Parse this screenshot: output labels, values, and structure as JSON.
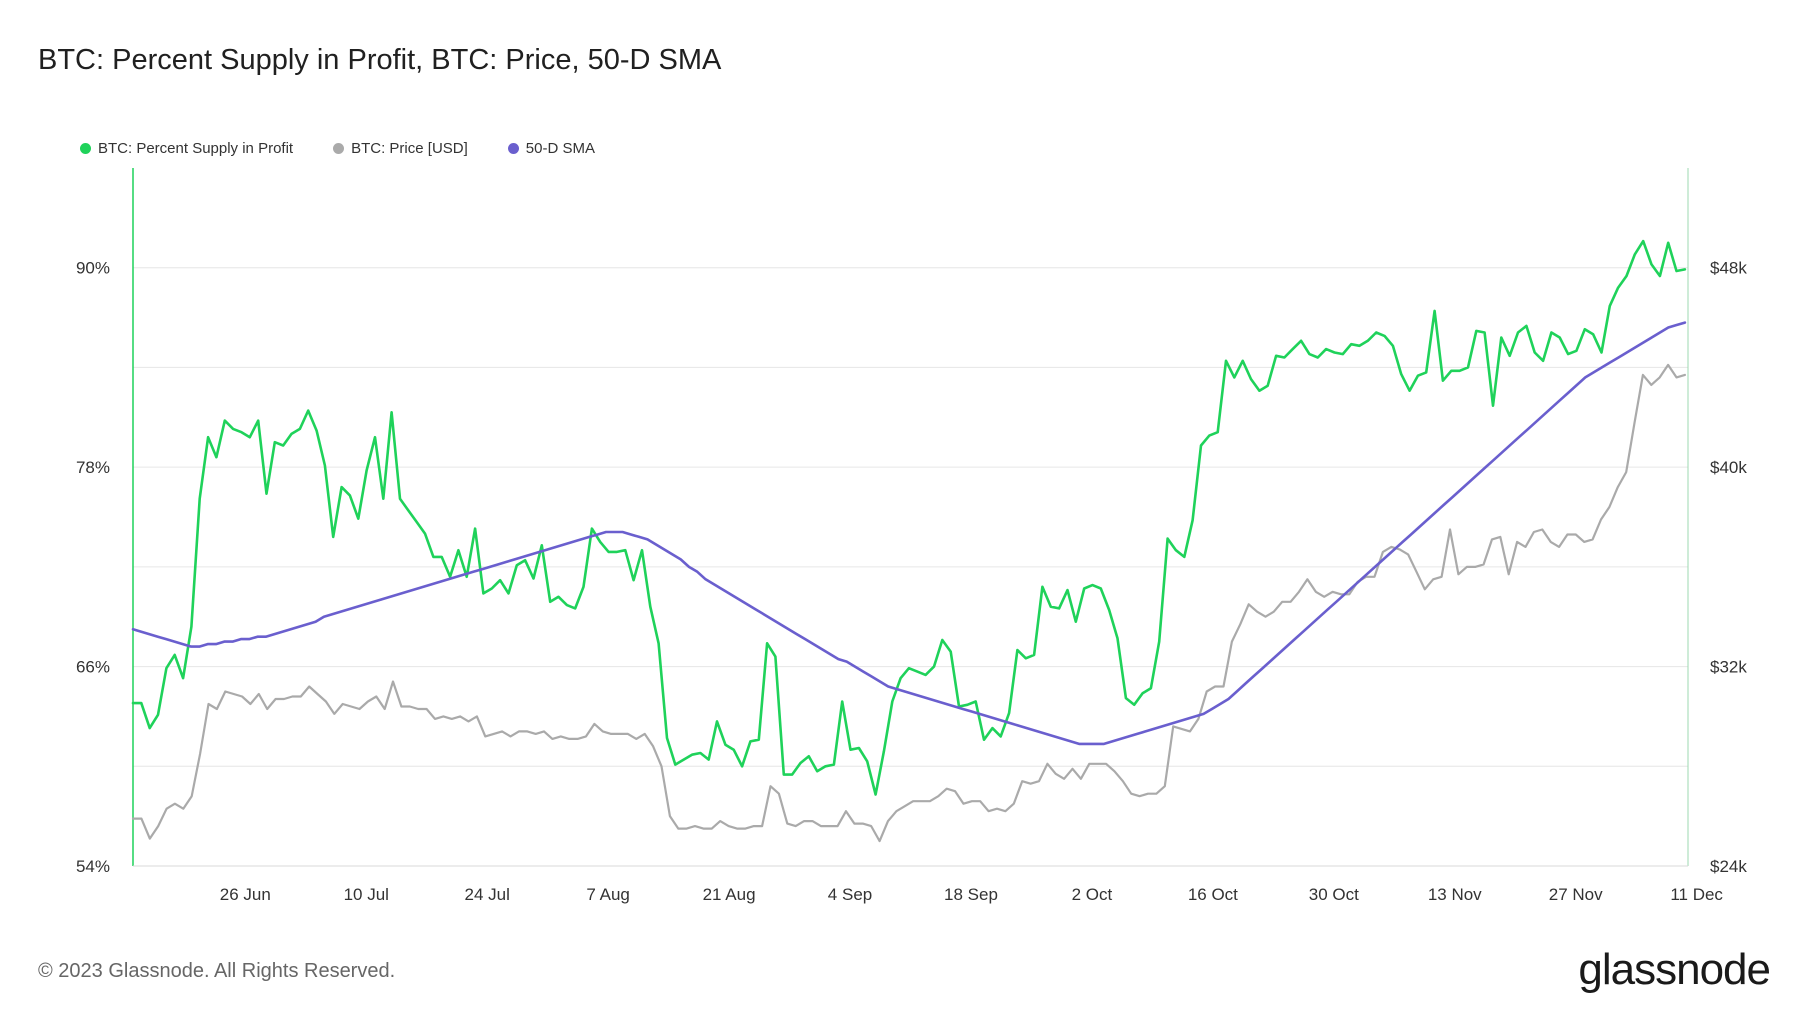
{
  "title": "BTC: Percent Supply in Profit, BTC: Price, 50-D SMA",
  "footer": "© 2023 Glassnode. All Rights Reserved.",
  "logo": "glassnode",
  "chart_data": {
    "type": "line",
    "legend_placement": "top-left",
    "grid": true,
    "x_ticks": [
      "26 Jun",
      "10 Jul",
      "24 Jul",
      "7 Aug",
      "21 Aug",
      "4 Sep",
      "18 Sep",
      "2 Oct",
      "16 Oct",
      "30 Oct",
      "13 Nov",
      "27 Nov",
      "11 Dec"
    ],
    "x_start": "2023-06-13",
    "x_end": "2023-12-10",
    "y_left": {
      "ticks": [
        "54%",
        "66%",
        "78%",
        "90%"
      ],
      "range": [
        54,
        96
      ]
    },
    "y_right": {
      "ticks": [
        "$24k",
        "$32k",
        "$40k",
        "$48k"
      ],
      "range": [
        24000,
        52000
      ]
    },
    "colors": {
      "supply": "#1fd25a",
      "price": "#aaaaaa",
      "sma": "#6a5fce"
    },
    "series": [
      {
        "name": "BTC: Percent Supply in Profit",
        "axis": "left",
        "key": "supply",
        "values": [
          63.8,
          63.8,
          62.3,
          63.1,
          65.9,
          66.7,
          65.3,
          68.4,
          76.1,
          79.8,
          78.6,
          80.8,
          80.3,
          80.1,
          79.8,
          80.8,
          76.4,
          79.5,
          79.3,
          80.0,
          80.3,
          81.4,
          80.2,
          78.1,
          73.8,
          76.8,
          76.3,
          74.9,
          77.8,
          79.8,
          76.1,
          81.3,
          76.1,
          75.4,
          74.7,
          74.0,
          72.6,
          72.6,
          71.4,
          73.0,
          71.4,
          74.3,
          70.4,
          70.7,
          71.2,
          70.4,
          72.1,
          72.4,
          71.3,
          73.3,
          69.9,
          70.2,
          69.7,
          69.5,
          70.8,
          74.3,
          73.5,
          72.9,
          72.9,
          73.0,
          71.2,
          73.0,
          69.6,
          67.4,
          61.7,
          60.1,
          60.4,
          60.7,
          60.8,
          60.4,
          62.7,
          61.3,
          61.0,
          60.0,
          61.5,
          61.6,
          67.4,
          66.6,
          59.5,
          59.5,
          60.2,
          60.6,
          59.7,
          60.0,
          60.1,
          63.9,
          61.0,
          61.1,
          60.3,
          58.3,
          60.9,
          63.9,
          65.3,
          65.9,
          65.7,
          65.5,
          66.0,
          67.6,
          66.9,
          63.6,
          63.7,
          63.9,
          61.6,
          62.3,
          61.8,
          63.2,
          67.0,
          66.5,
          66.7,
          70.8,
          69.6,
          69.5,
          70.6,
          68.7,
          70.7,
          70.9,
          70.7,
          69.4,
          67.7,
          64.1,
          63.7,
          64.4,
          64.7,
          67.5,
          73.7,
          73.0,
          72.6,
          74.8,
          79.3,
          79.9,
          80.1,
          84.4,
          83.4,
          84.4,
          83.3,
          82.6,
          82.9,
          84.7,
          84.6,
          85.1,
          85.6,
          84.8,
          84.6,
          85.1,
          84.9,
          84.8,
          85.4,
          85.3,
          85.6,
          86.1,
          85.9,
          85.3,
          83.6,
          82.6,
          83.5,
          83.7,
          87.4,
          83.2,
          83.8,
          83.8,
          84.0,
          86.2,
          86.1,
          81.7,
          85.8,
          84.7,
          86.1,
          86.5,
          84.9,
          84.4,
          86.1,
          85.8,
          84.8,
          85.0,
          86.3,
          86.0,
          84.9,
          87.7,
          88.8,
          89.5,
          90.8,
          91.6,
          90.2,
          89.5,
          91.5,
          89.8,
          89.9
        ]
      },
      {
        "name": "BTC: Price [USD]",
        "axis": "right",
        "key": "price",
        "values": [
          25900,
          25900,
          25100,
          25600,
          26300,
          26500,
          26300,
          26800,
          28500,
          30500,
          30300,
          31000,
          30900,
          30800,
          30500,
          30900,
          30300,
          30700,
          30700,
          30800,
          30800,
          31200,
          30900,
          30600,
          30100,
          30500,
          30400,
          30300,
          30600,
          30800,
          30300,
          31400,
          30400,
          30400,
          30300,
          30300,
          29900,
          30000,
          29900,
          30000,
          29800,
          30000,
          29200,
          29300,
          29400,
          29200,
          29400,
          29400,
          29300,
          29400,
          29100,
          29200,
          29100,
          29100,
          29200,
          29700,
          29400,
          29300,
          29300,
          29300,
          29100,
          29300,
          28800,
          28000,
          26000,
          25500,
          25500,
          25600,
          25500,
          25500,
          25800,
          25600,
          25500,
          25500,
          25600,
          25600,
          27200,
          26900,
          25700,
          25600,
          25800,
          25800,
          25600,
          25600,
          25600,
          26200,
          25700,
          25700,
          25600,
          25000,
          25800,
          26200,
          26400,
          26600,
          26600,
          26600,
          26800,
          27100,
          27000,
          26500,
          26600,
          26600,
          26200,
          26300,
          26200,
          26500,
          27400,
          27300,
          27400,
          28100,
          27700,
          27500,
          27900,
          27500,
          28100,
          28100,
          28100,
          27800,
          27400,
          26900,
          26800,
          26900,
          26900,
          27200,
          29600,
          29500,
          29400,
          29900,
          31000,
          31200,
          31200,
          33000,
          33700,
          34500,
          34200,
          34000,
          34200,
          34600,
          34600,
          35000,
          35500,
          35000,
          34800,
          35000,
          34900,
          34900,
          35400,
          35600,
          35600,
          36600,
          36800,
          36700,
          36500,
          35800,
          35100,
          35500,
          35600,
          37500,
          35700,
          36000,
          36000,
          36100,
          37100,
          37200,
          35700,
          37000,
          36800,
          37400,
          37500,
          37000,
          36800,
          37300,
          37300,
          37000,
          37100,
          37900,
          38400,
          39200,
          39800,
          41800,
          43700,
          43300,
          43600,
          44100,
          43600,
          43700
        ]
      },
      {
        "name": "50-D SMA",
        "axis": "right",
        "key": "sma",
        "values": [
          33500,
          33400,
          33300,
          33200,
          33100,
          33000,
          32900,
          32800,
          32800,
          32900,
          32900,
          33000,
          33000,
          33100,
          33100,
          33200,
          33200,
          33300,
          33400,
          33500,
          33600,
          33700,
          33800,
          34000,
          34100,
          34200,
          34300,
          34400,
          34500,
          34600,
          34700,
          34800,
          34900,
          35000,
          35100,
          35200,
          35300,
          35400,
          35500,
          35600,
          35700,
          35800,
          35900,
          36000,
          36100,
          36200,
          36300,
          36400,
          36500,
          36600,
          36700,
          36800,
          36900,
          37000,
          37100,
          37200,
          37300,
          37400,
          37400,
          37400,
          37300,
          37200,
          37100,
          36900,
          36700,
          36500,
          36300,
          36000,
          35800,
          35500,
          35300,
          35100,
          34900,
          34700,
          34500,
          34300,
          34100,
          33900,
          33700,
          33500,
          33300,
          33100,
          32900,
          32700,
          32500,
          32300,
          32200,
          32000,
          31800,
          31600,
          31400,
          31200,
          31100,
          31000,
          30900,
          30800,
          30700,
          30600,
          30500,
          30400,
          30300,
          30200,
          30100,
          30000,
          29900,
          29800,
          29700,
          29600,
          29500,
          29400,
          29300,
          29200,
          29100,
          29000,
          28900,
          28900,
          28900,
          28900,
          29000,
          29100,
          29200,
          29300,
          29400,
          29500,
          29600,
          29700,
          29800,
          29900,
          30000,
          30100,
          30300,
          30500,
          30700,
          31000,
          31300,
          31600,
          31900,
          32200,
          32500,
          32800,
          33100,
          33400,
          33700,
          34000,
          34300,
          34600,
          34900,
          35200,
          35500,
          35800,
          36100,
          36400,
          36700,
          37000,
          37300,
          37600,
          37900,
          38200,
          38500,
          38800,
          39100,
          39400,
          39700,
          40000,
          40300,
          40600,
          40900,
          41200,
          41500,
          41800,
          42100,
          42400,
          42700,
          43000,
          43300,
          43600,
          43800,
          44000,
          44200,
          44400,
          44600,
          44800,
          45000,
          45200,
          45400,
          45600,
          45700,
          45800
        ]
      }
    ]
  }
}
